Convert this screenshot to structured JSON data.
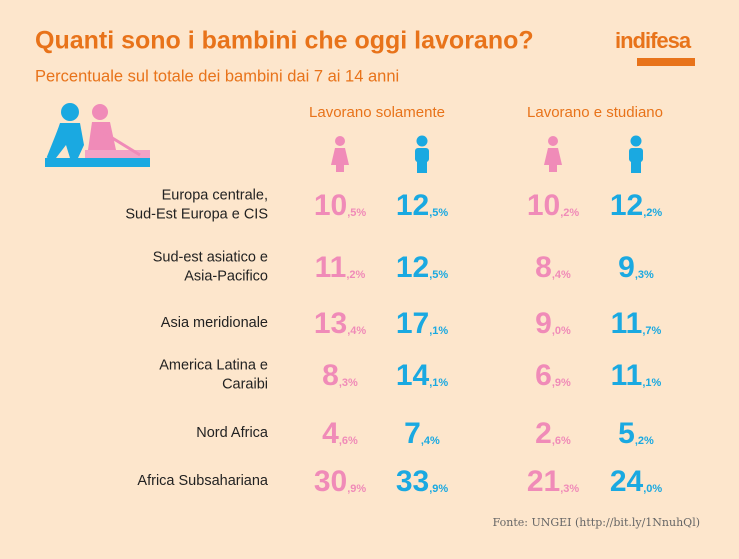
{
  "header": {
    "title": "Quanti sono i bambini che oggi lavorano?",
    "subtitle": "Percentuale sul totale dei bambini dai 7 ai 14 anni",
    "logo": "indifesa"
  },
  "table": {
    "columns": [
      "Lavorano solamente",
      "Lavorano e studiano"
    ],
    "rows": [
      {
        "label": [
          "Europa centrale,",
          "Sud-Est Europa e CIS"
        ],
        "values": [
          "10,5%",
          "12,5%",
          "10,2%",
          "12,2%"
        ]
      },
      {
        "label": [
          "Sud-est asiatico e",
          "Asia-Pacifico"
        ],
        "values": [
          "11,2%",
          "12,5%",
          "8,4%",
          "9,3%"
        ]
      },
      {
        "label": [
          "Asia meridionale"
        ],
        "values": [
          "13,4%",
          "17,1%",
          "9,0%",
          "11,7%"
        ]
      },
      {
        "label": [
          "America Latina e",
          "Caraibi"
        ],
        "values": [
          "8,3%",
          "14,1%",
          "6,9%",
          "11,1%"
        ]
      },
      {
        "label": [
          "Nord Africa"
        ],
        "values": [
          "4,6%",
          "7,4%",
          "2,6%",
          "5,2%"
        ]
      },
      {
        "label": [
          "Africa Subsahariana"
        ],
        "values": [
          "30,9%",
          "33,9%",
          "21,3%",
          "24,0%"
        ]
      }
    ]
  },
  "footer": {
    "source": "Fonte: UNGEI (http://bit.ly/1NnuhQl)"
  }
}
